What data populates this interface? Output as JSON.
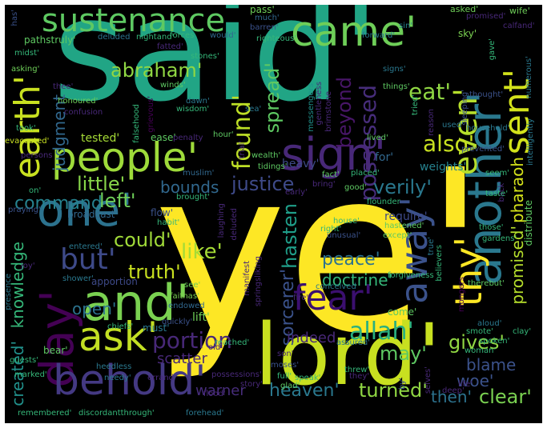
{
  "palette": {
    "background": "#000000",
    "yellow": "#fde725",
    "yellow_green": "#c8e020",
    "light_green": "#90d743",
    "green": "#5ec962",
    "sea_green": "#35b779",
    "teal": "#21918c",
    "teal_blue": "#2a788e",
    "blue": "#31688e",
    "indigo": "#3b528b",
    "purple": "#443983",
    "deep_purple": "#482878",
    "dark_purple": "#440154"
  },
  "words": [
    {
      "text": "said'",
      "color": "#21a585"
    },
    {
      "text": "ye'",
      "color": "#fde725"
    },
    {
      "text": "lord'",
      "color": "#c8e020"
    },
    {
      "text": "people'",
      "color": "#9edb3a"
    },
    {
      "text": "sign'",
      "color": "#482878"
    },
    {
      "text": "another'",
      "color": "#2a788e"
    },
    {
      "text": "sustenance",
      "color": "#5ec962"
    },
    {
      "text": "came'",
      "color": "#6ece58"
    },
    {
      "text": "earth'",
      "color": "#c8e020"
    },
    {
      "text": "one'",
      "color": "#2c728e"
    },
    {
      "text": "and'",
      "color": "#7ad151"
    },
    {
      "text": "day'",
      "color": "#440154"
    },
    {
      "text": "ask'",
      "color": "#c2df23"
    },
    {
      "text": "behold'",
      "color": "#443983"
    },
    {
      "text": "fear'",
      "color": "#3b0f70"
    },
    {
      "text": "thy'",
      "color": "#fde725"
    },
    {
      "text": "away'",
      "color": "#3b528b"
    },
    {
      "text": "sent'",
      "color": "#d2e21b"
    },
    {
      "text": "even'",
      "color": "#b5de2b"
    },
    {
      "text": "but'",
      "color": "#3e4a89"
    },
    {
      "text": "allah'",
      "color": "#29af7f"
    },
    {
      "text": "abraham'",
      "color": "#90d743"
    },
    {
      "text": "judgment",
      "color": "#31688e"
    },
    {
      "text": "spread'",
      "color": "#5ec962"
    },
    {
      "text": "possessed",
      "color": "#472d7b"
    },
    {
      "text": "found'",
      "color": "#bddf26"
    },
    {
      "text": "beyond",
      "color": "#481668"
    },
    {
      "text": "eat'",
      "color": "#90d743"
    },
    {
      "text": "also'",
      "color": "#c8e020"
    },
    {
      "text": "little'",
      "color": "#86d549"
    },
    {
      "text": "justice",
      "color": "#3e4a89"
    },
    {
      "text": "verily'",
      "color": "#2a788e"
    },
    {
      "text": "bounds",
      "color": "#31688e"
    },
    {
      "text": "command",
      "color": "#26828e"
    },
    {
      "text": "left'",
      "color": "#6ece58"
    },
    {
      "text": "could'",
      "color": "#a0da39"
    },
    {
      "text": "like'",
      "color": "#a5db36"
    },
    {
      "text": "truth'",
      "color": "#c8e020"
    },
    {
      "text": "hasten",
      "color": "#1f9e89"
    },
    {
      "text": "peace'",
      "color": "#2c728e"
    },
    {
      "text": "doctrine'",
      "color": "#35b779"
    },
    {
      "text": "promised'",
      "color": "#b5de2b"
    },
    {
      "text": "pharaoh",
      "color": "#d5e21a"
    },
    {
      "text": "sorcerer'",
      "color": "#3b528b"
    },
    {
      "text": "created'",
      "color": "#21918c"
    },
    {
      "text": "knowledge",
      "color": "#35b779"
    },
    {
      "text": "open'",
      "color": "#2c728e"
    },
    {
      "text": "portion",
      "color": "#482878"
    },
    {
      "text": "heaven'",
      "color": "#2a788e"
    },
    {
      "text": "turned'",
      "color": "#90d743"
    },
    {
      "text": "may'",
      "color": "#5ec962"
    },
    {
      "text": "gives'",
      "color": "#90d743"
    },
    {
      "text": "blame",
      "color": "#3b528b"
    },
    {
      "text": "woe'",
      "color": "#3b528b"
    },
    {
      "text": "clear'",
      "color": "#7ad151"
    },
    {
      "text": "then'",
      "color": "#2c728e"
    },
    {
      "text": "warner",
      "color": "#472d7b"
    },
    {
      "text": "lift'",
      "color": "#6ece58"
    },
    {
      "text": "indeed",
      "color": "#482878"
    },
    {
      "text": "scatter",
      "color": "#482878"
    },
    {
      "text": "heavy'",
      "color": "#3e4a89"
    },
    {
      "text": "for'",
      "color": "#31688e"
    },
    {
      "text": "weights'",
      "color": "#26828e"
    },
    {
      "text": "require'",
      "color": "#3e4a89"
    },
    {
      "text": "flow'",
      "color": "#3b528b"
    },
    {
      "text": "come'",
      "color": "#5ec962"
    },
    {
      "text": "broadcast'",
      "color": "#31688e"
    },
    {
      "text": "tested'",
      "color": "#a5db36"
    },
    {
      "text": "must'",
      "color": "#2a788e"
    },
    {
      "text": "apportion",
      "color": "#3e4a89"
    },
    {
      "text": "pathstruly'",
      "color": "#5ec962"
    },
    {
      "text": "pass'",
      "color": "#6ece58"
    },
    {
      "text": "asked'",
      "color": "#6ece58"
    },
    {
      "text": "wife'",
      "color": "#6ece58"
    },
    {
      "text": "much'",
      "color": "#31688e"
    },
    {
      "text": "barren'",
      "color": "#3b528b"
    },
    {
      "text": "promised'",
      "color": "#482878"
    },
    {
      "text": "calfand'",
      "color": "#482878"
    },
    {
      "text": "sin'",
      "color": "#26828e"
    },
    {
      "text": "righteous'",
      "color": "#35b779"
    },
    {
      "text": "forward'",
      "color": "#2a788e"
    },
    {
      "text": "sky'",
      "color": "#7ad151"
    },
    {
      "text": "nightand'",
      "color": "#35b779"
    },
    {
      "text": "forces",
      "color": "#35b779"
    },
    {
      "text": "would'",
      "color": "#31688e"
    },
    {
      "text": "deluded",
      "color": "#2c728e"
    },
    {
      "text": "fatted'",
      "color": "#482878"
    },
    {
      "text": "stones'",
      "color": "#35b779"
    },
    {
      "text": "midst'",
      "color": "#35b779"
    },
    {
      "text": "asking'",
      "color": "#6ece58"
    },
    {
      "text": "winds'",
      "color": "#5ec962"
    },
    {
      "text": "signs'",
      "color": "#2a788e"
    },
    {
      "text": "things'",
      "color": "#5ec962"
    },
    {
      "text": "numerous'",
      "color": "#2a788e"
    },
    {
      "text": "messengers",
      "color": "#21918c"
    },
    {
      "text": "gentleness",
      "color": "#482878"
    },
    {
      "text": "brimstone",
      "color": "#482878"
    },
    {
      "text": "reason",
      "color": "#482878"
    },
    {
      "text": "sleeping'",
      "color": "#3b528b"
    },
    {
      "text": "thought'",
      "color": "#3b528b"
    },
    {
      "text": "honoured'",
      "color": "#6ece58"
    },
    {
      "text": "wisdom'",
      "color": "#35b779"
    },
    {
      "text": "dawn'",
      "color": "#2a788e"
    },
    {
      "text": "sea'",
      "color": "#2a788e"
    },
    {
      "text": "confusion",
      "color": "#482878"
    },
    {
      "text": "grievous'",
      "color": "#440154"
    },
    {
      "text": "falsehood",
      "color": "#35b779"
    },
    {
      "text": "took'",
      "color": "#35b779"
    },
    {
      "text": "ease'",
      "color": "#5ec962"
    },
    {
      "text": "penalty",
      "color": "#482878"
    },
    {
      "text": "hour'",
      "color": "#5ec962"
    },
    {
      "text": "lived'",
      "color": "#5ec962"
    },
    {
      "text": "used'",
      "color": "#2a788e"
    },
    {
      "text": "household'",
      "color": "#2a788e"
    },
    {
      "text": "evacuated'",
      "color": "#c8e020"
    },
    {
      "text": "wealth'",
      "color": "#5ec962"
    },
    {
      "text": "trial'",
      "color": "#482878"
    },
    {
      "text": "prevented'",
      "color": "#3b528b"
    },
    {
      "text": "intelligently",
      "color": "#2a788e"
    },
    {
      "text": "persons",
      "color": "#482878"
    },
    {
      "text": "tidings'",
      "color": "#5ec962"
    },
    {
      "text": "muslim'",
      "color": "#31688e"
    },
    {
      "text": "fact'",
      "color": "#5ec962"
    },
    {
      "text": "placed'",
      "color": "#35b779"
    },
    {
      "text": "seem'",
      "color": "#35b779"
    },
    {
      "text": "back'",
      "color": "#482878"
    },
    {
      "text": "brought'",
      "color": "#35b779"
    },
    {
      "text": "early'",
      "color": "#482878"
    },
    {
      "text": "bring'",
      "color": "#482878"
    },
    {
      "text": "good'",
      "color": "#5ec962"
    },
    {
      "text": "flounder",
      "color": "#35b779"
    },
    {
      "text": "taste'",
      "color": "#35b779"
    },
    {
      "text": "praying'",
      "color": "#3b528b"
    },
    {
      "text": "on'",
      "color": "#35b779"
    },
    {
      "text": "hastened'",
      "color": "#5ec962"
    },
    {
      "text": "except'",
      "color": "#5ec962"
    },
    {
      "text": "habit'",
      "color": "#35b779"
    },
    {
      "text": "laughing",
      "color": "#482878"
    },
    {
      "text": "deluded",
      "color": "#482878"
    },
    {
      "text": "house'",
      "color": "#35b779"
    },
    {
      "text": "right'",
      "color": "#35b779"
    },
    {
      "text": "unusual'",
      "color": "#3b528b"
    },
    {
      "text": "those'",
      "color": "#35b779"
    },
    {
      "text": "gardens'",
      "color": "#35b779"
    },
    {
      "text": "true'",
      "color": "#2a788e"
    },
    {
      "text": "believers",
      "color": "#35b779"
    },
    {
      "text": "distribute",
      "color": "#5ec962"
    },
    {
      "text": "entered'",
      "color": "#2a788e"
    },
    {
      "text": "joy'",
      "color": "#482878"
    },
    {
      "text": "shower'",
      "color": "#2a788e"
    },
    {
      "text": "manifest",
      "color": "#482878"
    },
    {
      "text": "springsliking",
      "color": "#482878"
    },
    {
      "text": "forgiveness",
      "color": "#35b779"
    },
    {
      "text": "therebut'",
      "color": "#5ec962"
    },
    {
      "text": "see'",
      "color": "#6ece58"
    },
    {
      "text": "faithas'",
      "color": "#7ad151"
    },
    {
      "text": "endowed",
      "color": "#31688e"
    },
    {
      "text": "quickly'",
      "color": "#3b528b"
    },
    {
      "text": "presence",
      "color": "#2a788e"
    },
    {
      "text": "fire'",
      "color": "#482878"
    },
    {
      "text": "conceived",
      "color": "#2a788e"
    },
    {
      "text": "mongers",
      "color": "#440154"
    },
    {
      "text": "aloud'",
      "color": "#2a788e"
    },
    {
      "text": "clay'",
      "color": "#35b779"
    },
    {
      "text": "smote'",
      "color": "#35b779"
    },
    {
      "text": "spoken'",
      "color": "#35b779"
    },
    {
      "text": "chiefs'",
      "color": "#35b779"
    },
    {
      "text": "reached'",
      "color": "#35b779"
    },
    {
      "text": "old'",
      "color": "#482878"
    },
    {
      "text": "son'",
      "color": "#482878"
    },
    {
      "text": "assured'",
      "color": "#2a788e"
    },
    {
      "text": "woman'",
      "color": "#35b779"
    },
    {
      "text": "guests'",
      "color": "#35b779"
    },
    {
      "text": "bear'",
      "color": "#5ec962"
    },
    {
      "text": "moses'",
      "color": "#3b528b"
    },
    {
      "text": "heedless",
      "color": "#2a788e"
    },
    {
      "text": "possessions'",
      "color": "#482878"
    },
    {
      "text": "full'",
      "color": "#35b779"
    },
    {
      "text": "threw'",
      "color": "#35b779"
    },
    {
      "text": "they'",
      "color": "#482878"
    },
    {
      "text": "selves'",
      "color": "#482878"
    },
    {
      "text": "deep'",
      "color": "#482878"
    },
    {
      "text": "life'",
      "color": "#482878"
    },
    {
      "text": "marked'",
      "color": "#35b779"
    },
    {
      "text": "needy'",
      "color": "#2a788e"
    },
    {
      "text": "errand",
      "color": "#482878"
    },
    {
      "text": "glad'",
      "color": "#5ec962"
    },
    {
      "text": "speak'",
      "color": "#35b779"
    },
    {
      "text": "story'",
      "color": "#482878"
    },
    {
      "text": "by'",
      "color": "#3b528b"
    },
    {
      "text": "flood'",
      "color": "#482878"
    },
    {
      "text": "remembered'",
      "color": "#35b779"
    },
    {
      "text": "discordantthrough'",
      "color": "#35b779"
    },
    {
      "text": "forehead'",
      "color": "#2a788e"
    },
    {
      "text": "has'",
      "color": "#3b528b"
    },
    {
      "text": "thee'",
      "color": "#482878"
    },
    {
      "text": "tried'",
      "color": "#35b779"
    },
    {
      "text": "gave'",
      "color": "#35b779"
    }
  ]
}
